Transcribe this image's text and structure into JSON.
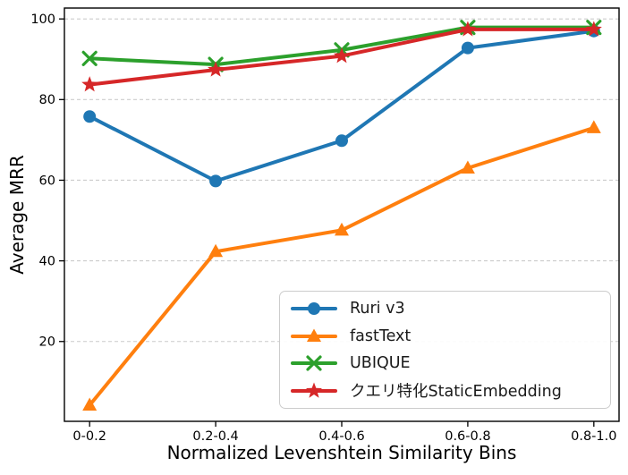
{
  "figure": {
    "kind": "matplotlib-line-plot"
  },
  "chart_data": {
    "type": "line",
    "title": "",
    "xlabel": "Normalized Levenshtein Similarity Bins",
    "ylabel": "Average MRR",
    "categories": [
      "0-0.2",
      "0.2-0.4",
      "0.4-0.6",
      "0.6-0.8",
      "0.8-1.0"
    ],
    "series": [
      {
        "name": "Ruri v3",
        "color": "#1f77b4",
        "marker": "circle",
        "values": [
          75.8,
          59.8,
          69.8,
          92.8,
          97.0
        ]
      },
      {
        "name": "fastText",
        "color": "#ff7f0e",
        "marker": "triangle",
        "values": [
          4.2,
          42.3,
          47.6,
          63.0,
          73.0
        ]
      },
      {
        "name": "UBIQUE",
        "color": "#2ca02c",
        "marker": "x",
        "values": [
          90.2,
          88.7,
          92.3,
          97.9,
          97.9
        ]
      },
      {
        "name": "クエリ特化StaticEmbedding",
        "color": "#d62728",
        "marker": "star",
        "values": [
          83.7,
          87.4,
          90.8,
          97.4,
          97.4
        ]
      }
    ],
    "yticks": [
      20,
      40,
      60,
      80,
      100
    ],
    "ylim": [
      0.2,
      102.7
    ],
    "grid": "horizontal-dashed",
    "grid_color": "#cccccc",
    "legend_position": "lower-right-inside",
    "spine_color": "#000000"
  }
}
